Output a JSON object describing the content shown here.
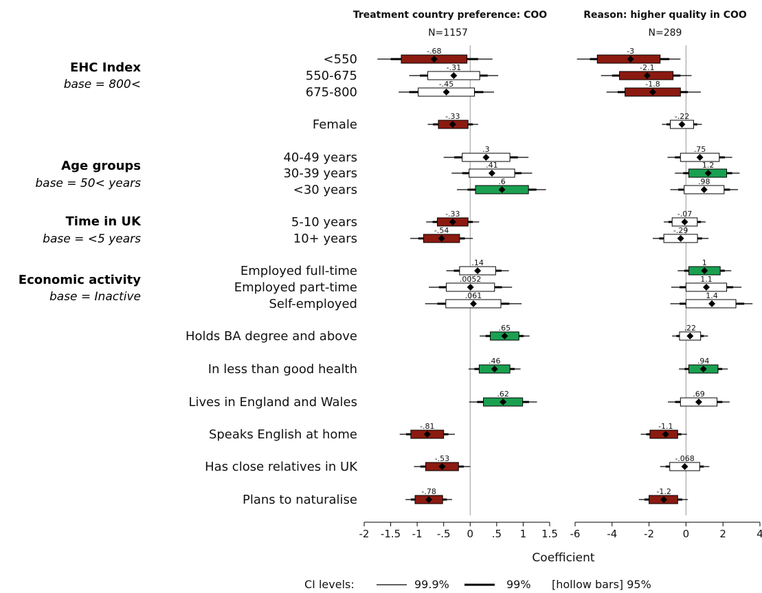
{
  "colors": {
    "negative": "#8B1A10",
    "positive": "#1AA050",
    "hollow": "#ffffff",
    "zero_line": "#999999"
  },
  "groups": [
    {
      "title": "EHC Index",
      "base": "base = 800<"
    },
    {
      "title": "Age groups",
      "base": "base = 50< years"
    },
    {
      "title": "Time in UK",
      "base": "base = <5 years"
    },
    {
      "title": "Economic activity",
      "base": "base = Inactive"
    }
  ],
  "axis_title": "Coefficient",
  "legend": {
    "prefix": "CI levels:",
    "level1": "99.9%",
    "level2": "99%",
    "level3": "[hollow bars] 95%"
  },
  "chart_data": [
    {
      "type": "coefficient plot",
      "title": "Treatment country preference: COO",
      "subtitle": "N=1157",
      "xlim": [
        -2,
        1.5
      ],
      "xticks": [
        -2,
        -1.5,
        -1,
        -0.5,
        0,
        0.5,
        1,
        1.5
      ],
      "xtick_labels": [
        "-2",
        "-1.5",
        "-1",
        "-.5",
        "0",
        ".5",
        "1",
        "1.5"
      ],
      "rows": [
        {
          "label": "<550",
          "coef": -0.68,
          "text": "-.68",
          "ci95": [
            -1.3,
            -0.06
          ],
          "ci99": [
            -1.5,
            0.15
          ],
          "ci999": [
            -1.75,
            0.42
          ],
          "sig": "negative"
        },
        {
          "label": "550-675",
          "coef": -0.31,
          "text": "-.31",
          "ci95": [
            -0.8,
            0.18
          ],
          "ci99": [
            -0.95,
            0.33
          ],
          "ci999": [
            -1.15,
            0.53
          ],
          "sig": "none"
        },
        {
          "label": "675-800",
          "coef": -0.45,
          "text": "-.45",
          "ci95": [
            -0.98,
            0.08
          ],
          "ci99": [
            -1.15,
            0.25
          ],
          "ci999": [
            -1.35,
            0.45
          ],
          "sig": "none"
        },
        {
          "label": "Female",
          "coef": -0.33,
          "text": "-.33",
          "ci95": [
            -0.6,
            -0.04
          ],
          "ci99": [
            -0.7,
            0.05
          ],
          "ci999": [
            -0.8,
            0.15
          ],
          "sig": "negative"
        },
        {
          "label": "40-49 years",
          "coef": 0.3,
          "text": ".3",
          "ci95": [
            -0.15,
            0.75
          ],
          "ci99": [
            -0.3,
            0.9
          ],
          "ci999": [
            -0.5,
            1.1
          ],
          "sig": "none"
        },
        {
          "label": "30-39 years",
          "coef": 0.41,
          "text": ".41",
          "ci95": [
            -0.02,
            0.84
          ],
          "ci99": [
            -0.15,
            0.97
          ],
          "ci999": [
            -0.35,
            1.17
          ],
          "sig": "none"
        },
        {
          "label": "<30 years",
          "coef": 0.6,
          "text": ".6",
          "ci95": [
            0.1,
            1.1
          ],
          "ci99": [
            -0.05,
            1.25
          ],
          "ci999": [
            -0.25,
            1.43
          ],
          "sig": "positive"
        },
        {
          "label": "5-10 years",
          "coef": -0.33,
          "text": "-.33",
          "ci95": [
            -0.62,
            -0.04
          ],
          "ci99": [
            -0.71,
            0.05
          ],
          "ci999": [
            -0.83,
            0.17
          ],
          "sig": "negative"
        },
        {
          "label": "10+ years",
          "coef": -0.54,
          "text": "-.54",
          "ci95": [
            -0.88,
            -0.2
          ],
          "ci99": [
            -0.98,
            -0.1
          ],
          "ci999": [
            -1.13,
            0.05
          ],
          "sig": "negative"
        },
        {
          "label": "Employed full-time",
          "coef": 0.14,
          "text": ".14",
          "ci95": [
            -0.2,
            0.48
          ],
          "ci99": [
            -0.31,
            0.59
          ],
          "ci999": [
            -0.45,
            0.73
          ],
          "sig": "none"
        },
        {
          "label": "Employed part-time",
          "coef": 0.0052,
          "text": ".0052",
          "ci95": [
            -0.45,
            0.46
          ],
          "ci99": [
            -0.59,
            0.6
          ],
          "ci999": [
            -0.78,
            0.79
          ],
          "sig": "none"
        },
        {
          "label": "Self-employed",
          "coef": 0.061,
          "text": ".061",
          "ci95": [
            -0.46,
            0.58
          ],
          "ci99": [
            -0.62,
            0.74
          ],
          "ci999": [
            -0.85,
            0.97
          ],
          "sig": "none"
        },
        {
          "label": "Holds BA degree and above",
          "coef": 0.65,
          "text": ".65",
          "ci95": [
            0.38,
            0.92
          ],
          "ci99": [
            0.29,
            1.01
          ],
          "ci999": [
            0.18,
            1.12
          ],
          "sig": "positive"
        },
        {
          "label": "In less than good health",
          "coef": 0.46,
          "text": ".46",
          "ci95": [
            0.17,
            0.75
          ],
          "ci99": [
            0.08,
            0.84
          ],
          "ci999": [
            -0.03,
            0.95
          ],
          "sig": "positive"
        },
        {
          "label": "Lives in England and Wales",
          "coef": 0.62,
          "text": ".62",
          "ci95": [
            0.25,
            0.99
          ],
          "ci99": [
            0.13,
            1.11
          ],
          "ci999": [
            -0.02,
            1.26
          ],
          "sig": "positive"
        },
        {
          "label": "Speaks English at home",
          "coef": -0.81,
          "text": "-.81",
          "ci95": [
            -1.12,
            -0.5
          ],
          "ci99": [
            -1.21,
            -0.41
          ],
          "ci999": [
            -1.33,
            -0.29
          ],
          "sig": "negative"
        },
        {
          "label": "Has close relatives in UK",
          "coef": -0.53,
          "text": "-.53",
          "ci95": [
            -0.84,
            -0.22
          ],
          "ci99": [
            -0.94,
            -0.12
          ],
          "ci999": [
            -1.06,
            0.0
          ],
          "sig": "negative"
        },
        {
          "label": "Plans to naturalise",
          "coef": -0.78,
          "text": "-.78",
          "ci95": [
            -1.04,
            -0.52
          ],
          "ci99": [
            -1.12,
            -0.44
          ],
          "ci999": [
            -1.22,
            -0.34
          ],
          "sig": "negative"
        }
      ]
    },
    {
      "type": "coefficient plot",
      "title": "Reason: higher quality in COO",
      "subtitle": "N=289",
      "xlim": [
        -6,
        4
      ],
      "xticks": [
        -6,
        -4,
        -2,
        0,
        2,
        4
      ],
      "xtick_labels": [
        "-6",
        "-4",
        "-2",
        "0",
        "2",
        "4"
      ],
      "rows": [
        {
          "label": "<550",
          "coef": -3,
          "text": "-3",
          "ci95": [
            -4.8,
            -1.4
          ],
          "ci99": [
            -5.2,
            -0.9
          ],
          "ci999": [
            -5.9,
            -0.3
          ],
          "sig": "negative"
        },
        {
          "label": "550-675",
          "coef": -2.1,
          "text": "-2.1",
          "ci95": [
            -3.6,
            -0.7
          ],
          "ci99": [
            -4.0,
            -0.3
          ],
          "ci999": [
            -4.6,
            0.3
          ],
          "sig": "negative"
        },
        {
          "label": "675-800",
          "coef": -1.8,
          "text": "-1.8",
          "ci95": [
            -3.3,
            -0.3
          ],
          "ci99": [
            -3.7,
            0.1
          ],
          "ci999": [
            -4.3,
            0.8
          ],
          "sig": "negative"
        },
        {
          "label": "Female",
          "coef": -0.22,
          "text": "-.22",
          "ci95": [
            -0.85,
            0.41
          ],
          "ci99": [
            -1.05,
            0.61
          ],
          "ci999": [
            -1.3,
            0.86
          ],
          "sig": "none"
        },
        {
          "label": "40-49 years",
          "coef": 0.75,
          "text": ".75",
          "ci95": [
            -0.3,
            1.8
          ],
          "ci99": [
            -0.6,
            2.1
          ],
          "ci999": [
            -1.0,
            2.5
          ],
          "sig": "none"
        },
        {
          "label": "30-39 years",
          "coef": 1.2,
          "text": "1.2",
          "ci95": [
            0.15,
            2.2
          ],
          "ci99": [
            -0.15,
            2.5
          ],
          "ci999": [
            -0.6,
            2.9
          ],
          "sig": "positive"
        },
        {
          "label": "<30 years",
          "coef": 0.98,
          "text": ".98",
          "ci95": [
            -0.1,
            2.06
          ],
          "ci99": [
            -0.42,
            2.38
          ],
          "ci999": [
            -0.85,
            2.81
          ],
          "sig": "none"
        },
        {
          "label": "5-10 years",
          "coef": -0.07,
          "text": "-.07",
          "ci95": [
            -0.75,
            0.61
          ],
          "ci99": [
            -0.95,
            0.81
          ],
          "ci999": [
            -1.2,
            1.06
          ],
          "sig": "none"
        },
        {
          "label": "10+ years",
          "coef": -0.29,
          "text": "-.29",
          "ci95": [
            -1.2,
            0.62
          ],
          "ci99": [
            -1.45,
            0.87
          ],
          "ci999": [
            -1.8,
            1.22
          ],
          "sig": "none"
        },
        {
          "label": "Employed full-time",
          "coef": 1,
          "text": "1",
          "ci95": [
            0.15,
            1.85
          ],
          "ci99": [
            -0.1,
            2.1
          ],
          "ci999": [
            -0.45,
            2.45
          ],
          "sig": "positive"
        },
        {
          "label": "Employed part-time",
          "coef": 1.1,
          "text": "1.1",
          "ci95": [
            0.0,
            2.2
          ],
          "ci99": [
            -0.35,
            2.55
          ],
          "ci999": [
            -0.8,
            3.0
          ],
          "sig": "none"
        },
        {
          "label": "Self-employed",
          "coef": 1.4,
          "text": "1.4",
          "ci95": [
            0.0,
            2.7
          ],
          "ci99": [
            -0.35,
            3.15
          ],
          "ci999": [
            -0.85,
            3.6
          ],
          "sig": "none"
        },
        {
          "label": "Holds BA degree and above",
          "coef": 0.22,
          "text": ".22",
          "ci95": [
            -0.35,
            0.79
          ],
          "ci99": [
            -0.52,
            0.96
          ],
          "ci999": [
            -0.75,
            1.19
          ],
          "sig": "none"
        },
        {
          "label": "In less than good health",
          "coef": 0.94,
          "text": ".94",
          "ci95": [
            0.15,
            1.73
          ],
          "ci99": [
            -0.08,
            1.96
          ],
          "ci999": [
            -0.38,
            2.26
          ],
          "sig": "positive"
        },
        {
          "label": "Lives in England and Wales",
          "coef": 0.69,
          "text": ".69",
          "ci95": [
            -0.3,
            1.68
          ],
          "ci99": [
            -0.59,
            1.97
          ],
          "ci999": [
            -0.98,
            2.36
          ],
          "sig": "none"
        },
        {
          "label": "Speaks English at home",
          "coef": -1.1,
          "text": "-1.1",
          "ci95": [
            -1.95,
            -0.45
          ],
          "ci99": [
            -2.15,
            -0.25
          ],
          "ci999": [
            -2.45,
            0.05
          ],
          "sig": "negative"
        },
        {
          "label": "Has close relatives in UK",
          "coef": -0.068,
          "text": "-.068",
          "ci95": [
            -0.88,
            0.74
          ],
          "ci99": [
            -1.1,
            0.96
          ],
          "ci999": [
            -1.4,
            1.26
          ],
          "sig": "none"
        },
        {
          "label": "Plans to naturalise",
          "coef": -1.2,
          "text": "-1.2",
          "ci95": [
            -2.0,
            -0.45
          ],
          "ci99": [
            -2.25,
            -0.2
          ],
          "ci999": [
            -2.55,
            0.1
          ],
          "sig": "negative"
        }
      ]
    }
  ]
}
